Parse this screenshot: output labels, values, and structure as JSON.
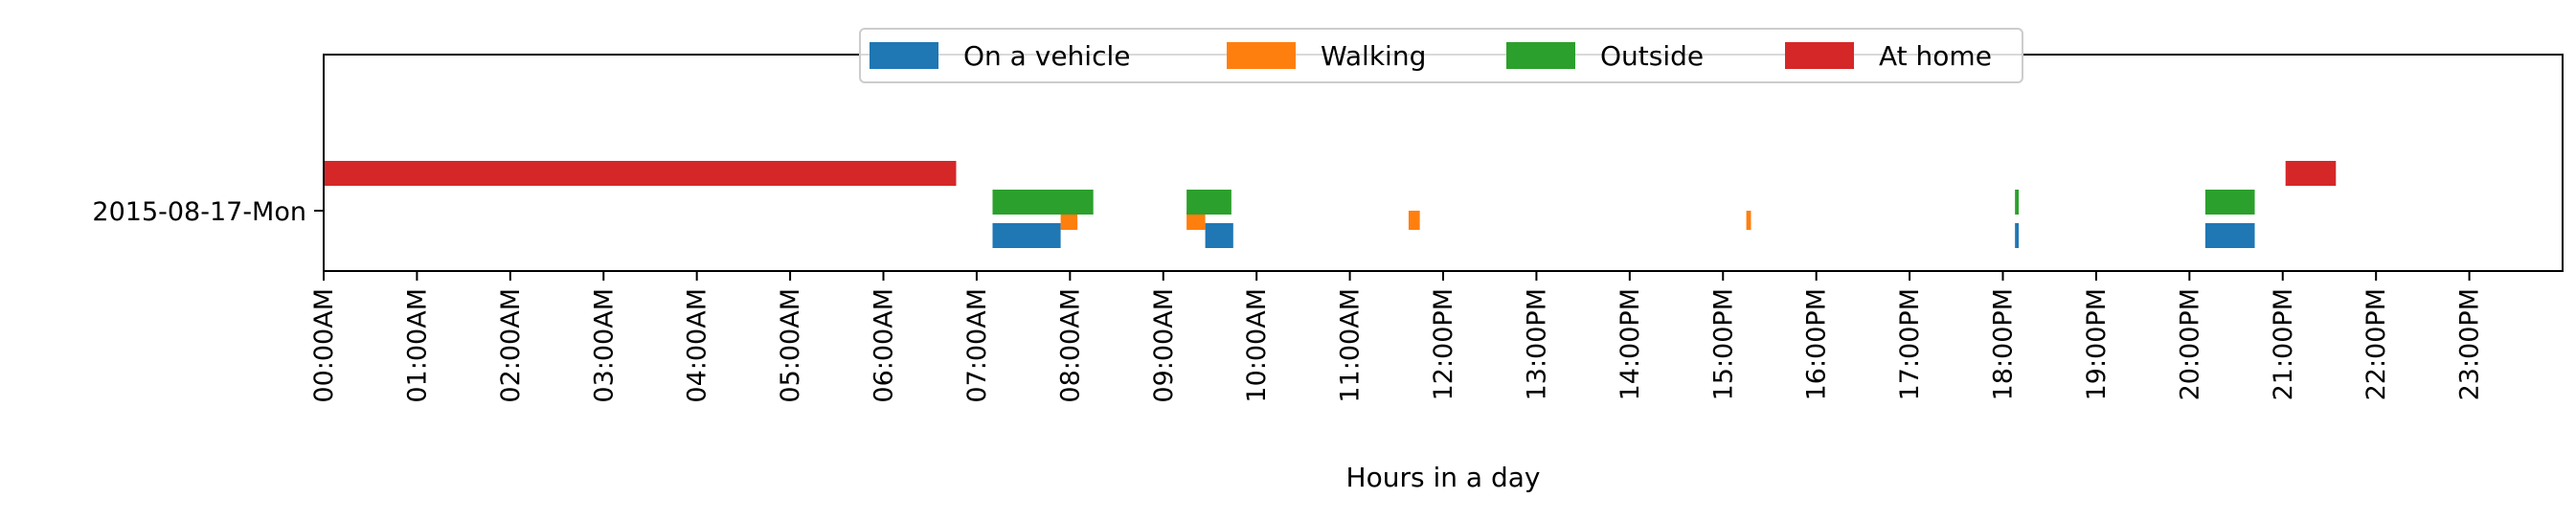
{
  "chart_data": {
    "type": "bar",
    "orientation": "horizontal-timeline",
    "title": "",
    "xlabel": "Hours in a day",
    "ylabel": "",
    "xlim": [
      0,
      24
    ],
    "grid": false,
    "legend_position": "top-center",
    "categories": [
      "2015-08-17-Mon"
    ],
    "x_ticks": [
      "00:00AM",
      "01:00AM",
      "02:00AM",
      "03:00AM",
      "04:00AM",
      "05:00AM",
      "06:00AM",
      "07:00AM",
      "08:00AM",
      "09:00AM",
      "10:00AM",
      "11:00AM",
      "12:00PM",
      "13:00PM",
      "14:00PM",
      "15:00PM",
      "16:00PM",
      "17:00PM",
      "18:00PM",
      "19:00PM",
      "20:00PM",
      "21:00PM",
      "22:00PM",
      "23:00PM"
    ],
    "series": [
      {
        "name": "On a vehicle",
        "color": "#1f77b4",
        "segments": [
          {
            "start": 7.17,
            "end": 7.9
          },
          {
            "start": 9.45,
            "end": 9.75
          },
          {
            "start": 18.13,
            "end": 18.17
          },
          {
            "start": 20.17,
            "end": 20.7
          }
        ]
      },
      {
        "name": "Walking",
        "color": "#ff7f0e",
        "segments": [
          {
            "start": 7.9,
            "end": 8.08
          },
          {
            "start": 9.25,
            "end": 9.45
          },
          {
            "start": 11.63,
            "end": 11.75
          },
          {
            "start": 15.25,
            "end": 15.3
          }
        ]
      },
      {
        "name": "Outside",
        "color": "#2ca02c",
        "segments": [
          {
            "start": 7.17,
            "end": 8.25
          },
          {
            "start": 9.25,
            "end": 9.73
          },
          {
            "start": 18.13,
            "end": 18.17
          },
          {
            "start": 20.17,
            "end": 20.7
          }
        ]
      },
      {
        "name": "At home",
        "color": "#d62728",
        "segments": [
          {
            "start": 0.0,
            "end": 6.78
          },
          {
            "start": 21.03,
            "end": 21.57
          }
        ]
      }
    ]
  }
}
